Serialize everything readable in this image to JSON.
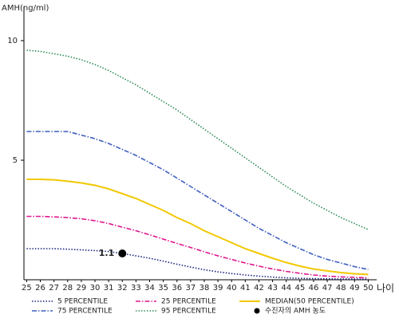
{
  "chart_data": {
    "type": "line",
    "y_label": "AMH(ng/ml)",
    "x_label": "나이",
    "x": [
      25,
      26,
      27,
      28,
      29,
      30,
      31,
      32,
      33,
      34,
      35,
      36,
      37,
      38,
      39,
      40,
      41,
      42,
      43,
      44,
      45,
      46,
      47,
      48,
      49,
      50
    ],
    "xlim": [
      24.8,
      50.5
    ],
    "xticks": [
      25,
      26,
      27,
      28,
      29,
      30,
      31,
      32,
      33,
      34,
      35,
      36,
      37,
      38,
      39,
      40,
      41,
      42,
      43,
      44,
      45,
      46,
      47,
      48,
      49,
      50
    ],
    "ylim": [
      0,
      11.1
    ],
    "yticks": [
      5,
      10
    ],
    "series": [
      {
        "name": "5 PERCENTILE",
        "color": "#1a237e",
        "style": "dotted",
        "values": [
          1.3,
          1.3,
          1.3,
          1.28,
          1.25,
          1.22,
          1.18,
          1.1,
          1.0,
          0.9,
          0.78,
          0.65,
          0.53,
          0.42,
          0.33,
          0.26,
          0.2,
          0.15,
          0.11,
          0.08,
          0.06,
          0.05,
          0.04,
          0.03,
          0.03,
          0.02
        ]
      },
      {
        "name": "25 PERCENTILE",
        "color": "#e0158c",
        "style": "dashdot",
        "values": [
          2.65,
          2.65,
          2.63,
          2.6,
          2.55,
          2.47,
          2.35,
          2.2,
          2.05,
          1.88,
          1.7,
          1.52,
          1.35,
          1.17,
          1.0,
          0.85,
          0.7,
          0.57,
          0.45,
          0.35,
          0.27,
          0.2,
          0.15,
          0.12,
          0.1,
          0.08
        ]
      },
      {
        "name": "MEDIAN(50 PERCENTILE)",
        "color": "#f2c800",
        "style": "solid",
        "values": [
          4.2,
          4.2,
          4.18,
          4.12,
          4.05,
          3.95,
          3.8,
          3.6,
          3.4,
          3.15,
          2.9,
          2.6,
          2.35,
          2.05,
          1.8,
          1.55,
          1.3,
          1.1,
          0.9,
          0.72,
          0.57,
          0.45,
          0.37,
          0.3,
          0.25,
          0.22
        ]
      },
      {
        "name": "75 PERCENTILE",
        "color": "#3f5fbf",
        "style": "dashdot",
        "values": [
          6.2,
          6.2,
          6.2,
          6.2,
          6.05,
          5.9,
          5.7,
          5.45,
          5.2,
          4.9,
          4.6,
          4.25,
          3.9,
          3.55,
          3.2,
          2.85,
          2.5,
          2.15,
          1.85,
          1.55,
          1.3,
          1.05,
          0.85,
          0.7,
          0.55,
          0.43
        ]
      },
      {
        "name": "95 PERCENTILE",
        "color": "#2e8b57",
        "style": "dotted",
        "values": [
          9.6,
          9.55,
          9.45,
          9.35,
          9.2,
          9.0,
          8.75,
          8.45,
          8.15,
          7.8,
          7.45,
          7.1,
          6.7,
          6.3,
          5.9,
          5.5,
          5.1,
          4.7,
          4.3,
          3.9,
          3.55,
          3.2,
          2.9,
          2.6,
          2.35,
          2.1
        ]
      }
    ],
    "point": {
      "name": "수진자의 AMH 농도",
      "x": 32,
      "value": 1.1,
      "color": "#000000"
    }
  }
}
